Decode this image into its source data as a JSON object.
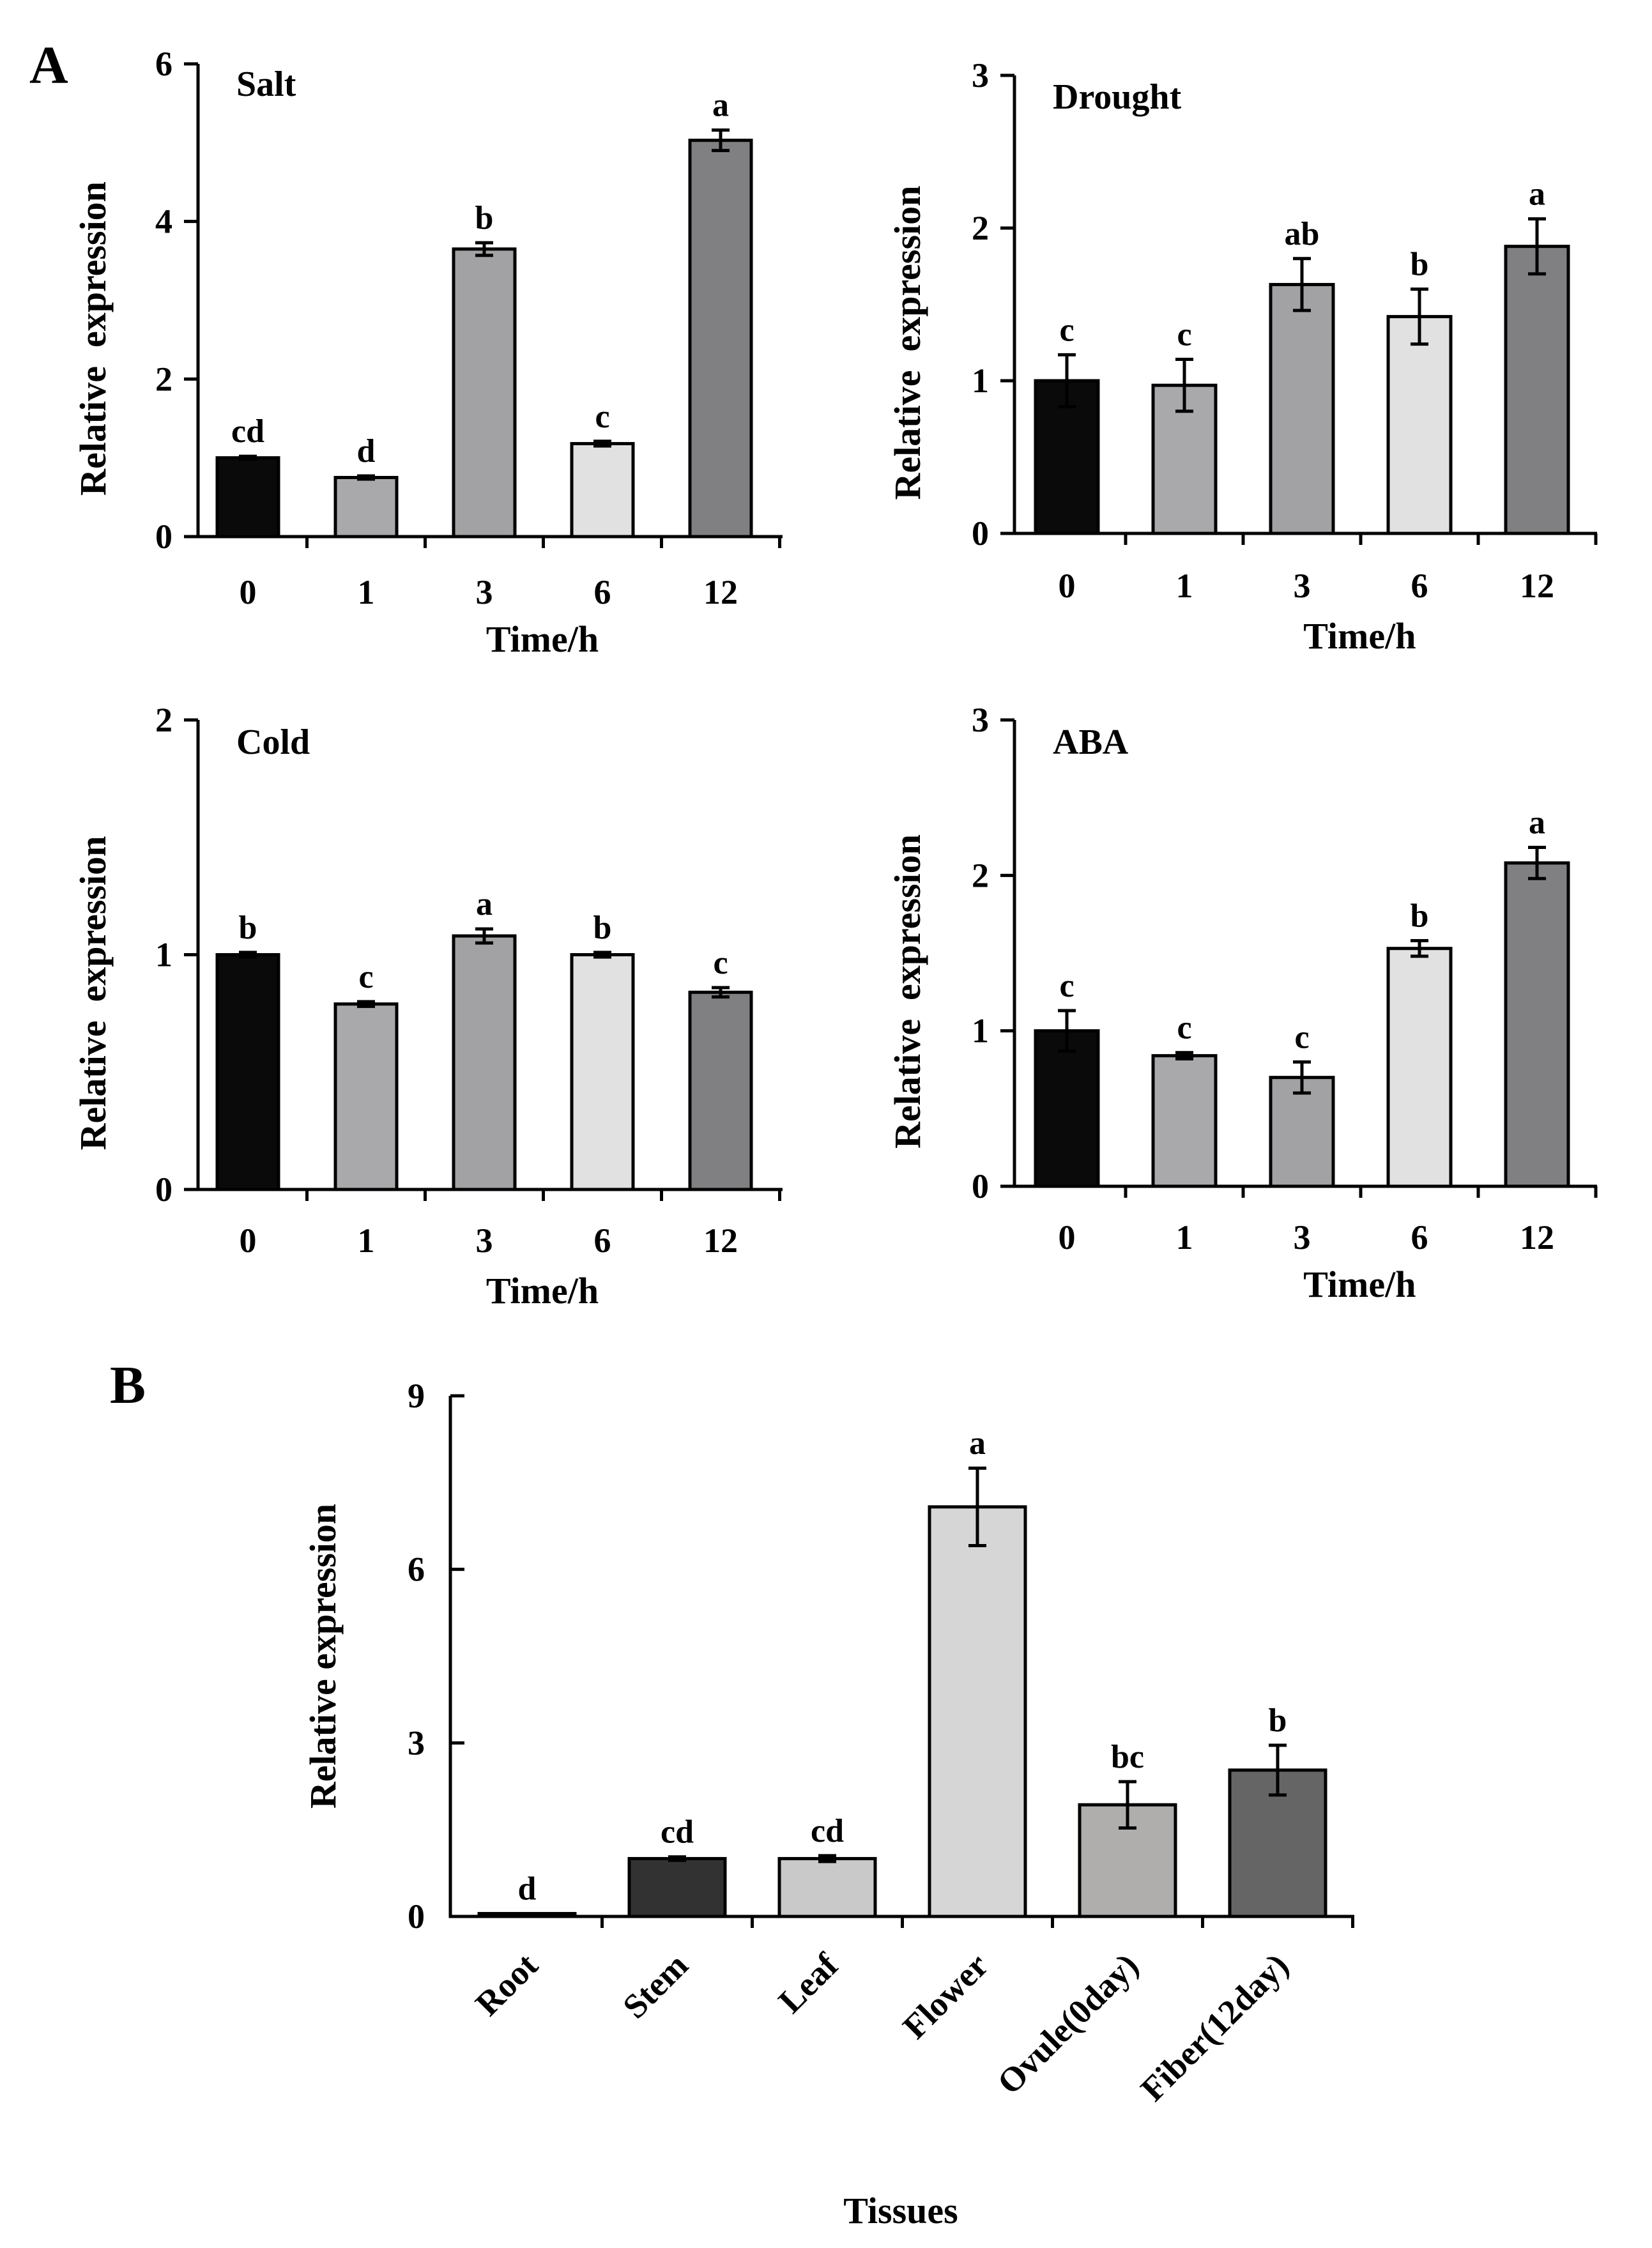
{
  "panels": {
    "a_label": "A",
    "b_label": "B"
  },
  "colors": {
    "black": "#0a0a0a",
    "gray_mid": "#a9a9ab",
    "gray_light_mid": "#a2a2a4",
    "gray_pale": "#e1e1e1",
    "gray_dark": "#808082",
    "dark_charcoal": "#333232",
    "light_gray": "#c9c9c9",
    "flower_gray": "#d6d6d6",
    "ovule_gray": "#b0adad",
    "fiber_gray": "#666565"
  },
  "chart_data": [
    {
      "id": "salt",
      "type": "bar",
      "title": "Salt",
      "xlabel": "Time/h",
      "ylabel": "Relative  expression",
      "categories": [
        "0",
        "1",
        "3",
        "6",
        "12"
      ],
      "values": [
        1.0,
        0.75,
        3.65,
        1.18,
        5.03
      ],
      "errors": [
        0.02,
        0.02,
        0.08,
        0.03,
        0.13
      ],
      "significance": [
        "cd",
        "d",
        "b",
        "c",
        "a"
      ],
      "ylim": [
        0,
        6
      ],
      "yticks": [
        "0",
        "2",
        "4",
        "6"
      ],
      "bar_colors": [
        "#0a0a0a",
        "#a9a9ab",
        "#a2a2a4",
        "#e1e1e1",
        "#808082"
      ]
    },
    {
      "id": "drought",
      "type": "bar",
      "title": "Drought",
      "xlabel": "Time/h",
      "ylabel": "Relative  expression",
      "categories": [
        "0",
        "1",
        "3",
        "6",
        "12"
      ],
      "values": [
        1.0,
        0.97,
        1.63,
        1.42,
        1.88
      ],
      "errors": [
        0.17,
        0.17,
        0.17,
        0.18,
        0.18
      ],
      "significance": [
        "c",
        "c",
        "ab",
        "b",
        "a"
      ],
      "ylim": [
        0,
        3
      ],
      "yticks": [
        "0",
        "1",
        "2",
        "3"
      ],
      "bar_colors": [
        "#0a0a0a",
        "#a9a9ab",
        "#a2a2a4",
        "#e1e1e1",
        "#808082"
      ]
    },
    {
      "id": "cold",
      "type": "bar",
      "title": "Cold",
      "xlabel": "Time/h",
      "ylabel": "Relative  expression",
      "categories": [
        "0",
        "1",
        "3",
        "6",
        "12"
      ],
      "values": [
        1.0,
        0.79,
        1.08,
        1.0,
        0.84
      ],
      "errors": [
        0.01,
        0.01,
        0.03,
        0.01,
        0.02
      ],
      "significance": [
        "b",
        "c",
        "a",
        "b",
        "c"
      ],
      "ylim": [
        0,
        2
      ],
      "yticks": [
        "0",
        "1",
        "2"
      ],
      "bar_colors": [
        "#0a0a0a",
        "#a9a9ab",
        "#a2a2a4",
        "#e1e1e1",
        "#808082"
      ]
    },
    {
      "id": "aba",
      "type": "bar",
      "title": "ABA",
      "xlabel": "Time/h",
      "ylabel": "Relative  expression",
      "categories": [
        "0",
        "1",
        "3",
        "6",
        "12"
      ],
      "values": [
        1.0,
        0.84,
        0.7,
        1.53,
        2.08
      ],
      "errors": [
        0.13,
        0.02,
        0.1,
        0.05,
        0.1
      ],
      "significance": [
        "c",
        "c",
        "c",
        "b",
        "a"
      ],
      "ylim": [
        0,
        3
      ],
      "yticks": [
        "0",
        "1",
        "2",
        "3"
      ],
      "bar_colors": [
        "#0a0a0a",
        "#a9a9ab",
        "#a2a2a4",
        "#e1e1e1",
        "#808082"
      ]
    },
    {
      "id": "tissues",
      "type": "bar",
      "title": "",
      "xlabel": "Tissues",
      "ylabel": "Relative expression",
      "categories": [
        "Root",
        "Stem",
        "Leaf",
        "Flower",
        "Ovule(0day)",
        "Fiber(12day)"
      ],
      "values": [
        0.05,
        1.0,
        1.0,
        7.08,
        1.93,
        2.53
      ],
      "errors": [
        0,
        0.03,
        0.05,
        0.67,
        0.4,
        0.43
      ],
      "significance": [
        "d",
        "cd",
        "cd",
        "a",
        "bc",
        "b"
      ],
      "ylim": [
        0,
        9
      ],
      "yticks": [
        "0",
        "3",
        "6",
        "9"
      ],
      "bar_colors": [
        "#0a0a0a",
        "#333232",
        "#c9c9c9",
        "#d6d6d6",
        "#b0adad",
        "#666565"
      ]
    }
  ]
}
